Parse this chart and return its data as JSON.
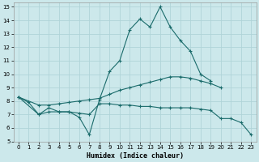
{
  "xlabel": "Humidex (Indice chaleur)",
  "background_color": "#cce8eb",
  "grid_color": "#b0d4d8",
  "line_color": "#1a6b6b",
  "xlim": [
    -0.5,
    23.5
  ],
  "ylim": [
    5,
    15.3
  ],
  "yticks": [
    5,
    6,
    7,
    8,
    9,
    10,
    11,
    12,
    13,
    14,
    15
  ],
  "xticks": [
    0,
    1,
    2,
    3,
    4,
    5,
    6,
    7,
    8,
    9,
    10,
    11,
    12,
    13,
    14,
    15,
    16,
    17,
    18,
    19,
    20,
    21,
    22,
    23
  ],
  "line1_x": [
    0,
    1,
    2,
    3,
    4,
    5,
    6,
    7,
    8,
    9,
    10,
    11,
    12,
    13,
    14,
    15,
    16,
    17,
    18,
    19
  ],
  "line1_y": [
    8.3,
    7.9,
    7.0,
    7.5,
    7.2,
    7.2,
    6.8,
    5.5,
    8.1,
    10.2,
    11.0,
    13.3,
    14.1,
    13.5,
    15.0,
    13.5,
    12.5,
    11.7,
    10.0,
    9.5
  ],
  "line2_x": [
    0,
    2,
    3,
    4,
    5,
    6,
    7,
    8,
    9,
    10,
    11,
    12,
    13,
    14,
    15,
    16,
    17,
    18,
    19,
    20,
    21,
    22,
    23
  ],
  "line2_y": [
    8.3,
    7.7,
    7.7,
    7.8,
    7.9,
    8.0,
    8.1,
    8.2,
    8.5,
    8.8,
    9.0,
    9.2,
    9.4,
    9.6,
    9.8,
    9.8,
    9.7,
    9.5,
    9.3,
    9.0,
    null,
    null,
    null
  ],
  "line3_x": [
    0,
    2,
    3,
    4,
    5,
    6,
    7,
    8,
    9,
    10,
    11,
    12,
    13,
    14,
    15,
    16,
    17,
    18,
    19,
    20,
    21,
    22,
    23
  ],
  "line3_y": [
    8.3,
    7.0,
    7.2,
    7.2,
    7.2,
    7.1,
    7.0,
    7.8,
    7.8,
    7.7,
    7.7,
    7.6,
    7.6,
    7.5,
    7.5,
    7.5,
    7.5,
    7.4,
    7.3,
    6.7,
    6.7,
    6.4,
    5.5
  ]
}
